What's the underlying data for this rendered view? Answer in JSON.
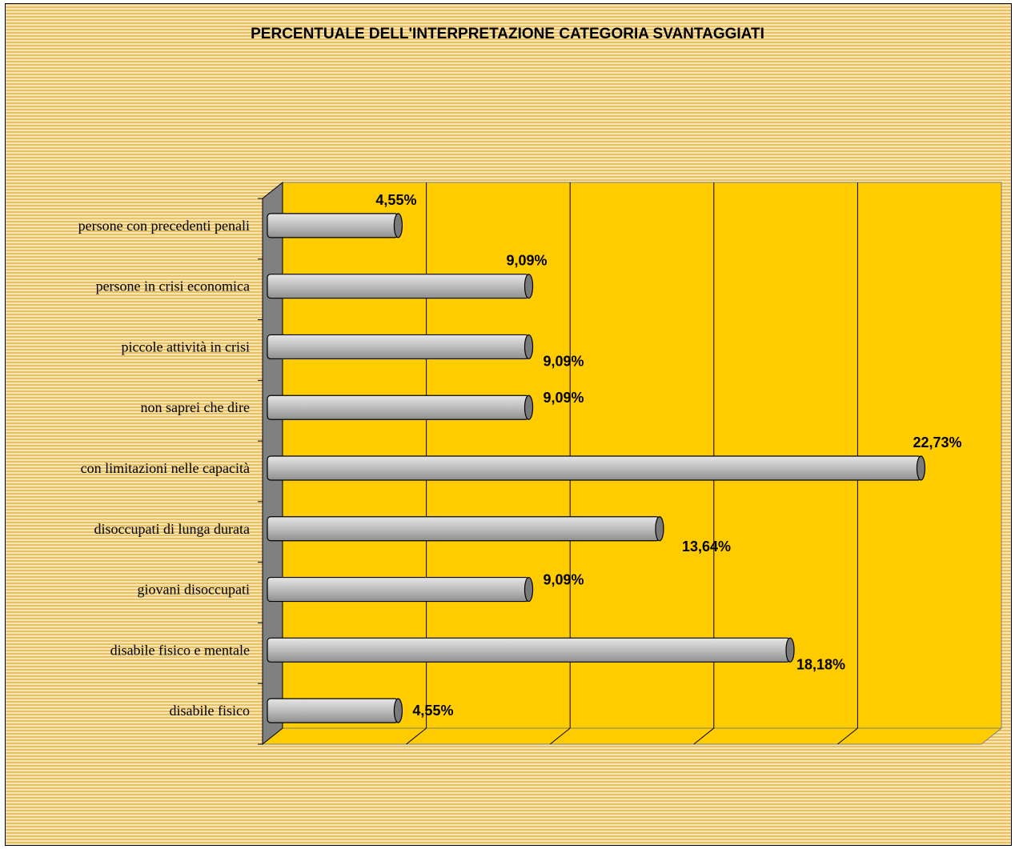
{
  "chart_data": {
    "type": "bar",
    "orientation": "horizontal",
    "title": "PERCENTUALE DELL'INTERPRETAZIONE CATEGORIA SVANTAGGIATI",
    "categories": [
      "persone con precedenti penali",
      "persone in crisi economica",
      "piccole attività in crisi",
      "non saprei che dire",
      "con limitazioni nelle capacità",
      "disoccupati di lunga durata",
      "giovani disoccupati",
      "disabile fisico e mentale",
      "disabile fisico"
    ],
    "values": [
      4.55,
      9.09,
      9.09,
      9.09,
      22.73,
      13.64,
      9.09,
      18.18,
      4.55
    ],
    "labels": [
      "4,55%",
      "9,09%",
      "9,09%",
      "9,09%",
      "22,73%",
      "13,64%",
      "9,09%",
      "18,18%",
      "4,55%"
    ],
    "xlim": [
      0,
      25
    ],
    "grid": true,
    "legend": "none",
    "colors": {
      "plot_background": "#ffcc00",
      "bar_fill": "#bdbdbd",
      "side_wall": "#808080",
      "frame_background": "#f2d27e"
    }
  }
}
